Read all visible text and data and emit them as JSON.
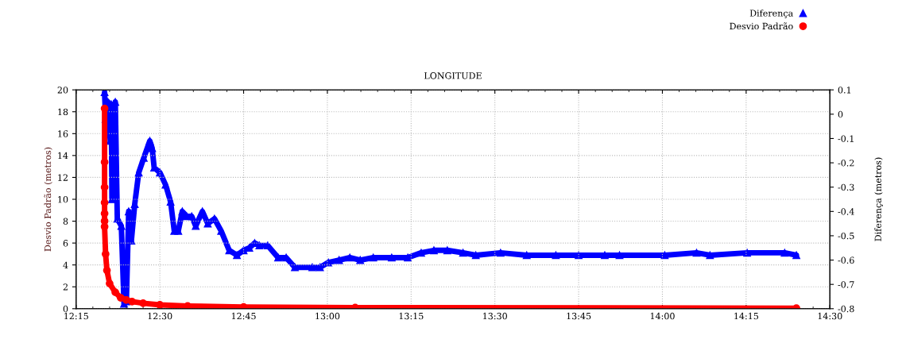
{
  "chart_data": {
    "type": "line",
    "title": "LONGITUDE",
    "ylabel": "Desvio Padrão (metros)",
    "y2label": "Diferença (metros)",
    "xlim": [
      12.25,
      14.5
    ],
    "xticks": [
      {
        "value": 12.25,
        "label": "12:15"
      },
      {
        "value": 12.5,
        "label": "12:30"
      },
      {
        "value": 12.75,
        "label": "12:45"
      },
      {
        "value": 13.0,
        "label": "13:00"
      },
      {
        "value": 13.25,
        "label": "13:15"
      },
      {
        "value": 13.5,
        "label": "13:30"
      },
      {
        "value": 13.75,
        "label": "13:45"
      },
      {
        "value": 14.0,
        "label": "14:00"
      },
      {
        "value": 14.25,
        "label": "14:15"
      },
      {
        "value": 14.5,
        "label": "14:30"
      }
    ],
    "ylim": [
      0,
      20
    ],
    "yticks": [
      0,
      2,
      4,
      6,
      8,
      10,
      12,
      14,
      16,
      18,
      20
    ],
    "y2lim": [
      -0.8,
      0.1
    ],
    "y2ticks": [
      -0.8,
      -0.7,
      -0.6,
      -0.5,
      -0.4,
      -0.3,
      -0.2,
      -0.1,
      0,
      0.1
    ],
    "grid": true,
    "legend": "top right",
    "line_style": "solid",
    "series": [
      {
        "name": "Diferença",
        "color": "#0000ff",
        "axis": "y2",
        "marker": "triangle",
        "x": [
          12.335,
          12.338,
          12.345,
          12.352,
          12.355,
          12.357,
          12.367,
          12.373,
          12.385,
          12.393,
          12.4,
          12.407,
          12.415,
          12.425,
          12.437,
          12.452,
          12.47,
          12.477,
          12.483,
          12.5,
          12.517,
          12.532,
          12.543,
          12.555,
          12.567,
          12.58,
          12.595,
          12.607,
          12.627,
          12.643,
          12.663,
          12.683,
          12.707,
          12.73,
          12.75,
          12.767,
          12.783,
          12.797,
          12.822,
          12.853,
          12.877,
          12.903,
          12.955,
          12.978,
          13.003,
          13.035,
          13.067,
          13.098,
          13.137,
          13.192,
          13.24,
          13.28,
          13.318,
          13.358,
          13.405,
          13.443,
          13.517,
          13.595,
          13.682,
          13.75,
          13.828,
          13.872,
          14.007,
          14.102,
          14.142,
          14.253,
          14.365,
          14.4
        ],
        "values": [
          0.09,
          -0.02,
          0.05,
          -0.11,
          0.04,
          -0.35,
          0.05,
          -0.43,
          -0.46,
          -0.78,
          -0.77,
          -0.4,
          -0.52,
          -0.37,
          -0.24,
          -0.18,
          -0.11,
          -0.14,
          -0.22,
          -0.24,
          -0.29,
          -0.36,
          -0.48,
          -0.48,
          -0.4,
          -0.42,
          -0.42,
          -0.46,
          -0.4,
          -0.45,
          -0.43,
          -0.48,
          -0.56,
          -0.58,
          -0.56,
          -0.55,
          -0.53,
          -0.54,
          -0.54,
          -0.59,
          -0.59,
          -0.63,
          -0.63,
          -0.63,
          -0.61,
          -0.6,
          -0.59,
          -0.6,
          -0.59,
          -0.59,
          -0.59,
          -0.57,
          -0.56,
          -0.56,
          -0.57,
          -0.58,
          -0.57,
          -0.58,
          -0.58,
          -0.58,
          -0.58,
          -0.58,
          -0.58,
          -0.57,
          -0.58,
          -0.57,
          -0.57,
          -0.58
        ]
      },
      {
        "name": "Desvio Padrão",
        "color": "#ff0000",
        "marker": "circle",
        "x": [
          12.335,
          12.335,
          12.335,
          12.335,
          12.335,
          12.335,
          12.335,
          12.338,
          12.342,
          12.35,
          12.367,
          12.383,
          12.4,
          12.417,
          12.45,
          12.5,
          12.583,
          12.75,
          13.083,
          14.4
        ],
        "values": [
          18.3,
          13.4,
          11.1,
          9.7,
          8.7,
          8.0,
          7.5,
          5.0,
          3.5,
          2.3,
          1.5,
          1.0,
          0.8,
          0.65,
          0.5,
          0.35,
          0.25,
          0.15,
          0.1,
          0.05
        ]
      }
    ]
  }
}
